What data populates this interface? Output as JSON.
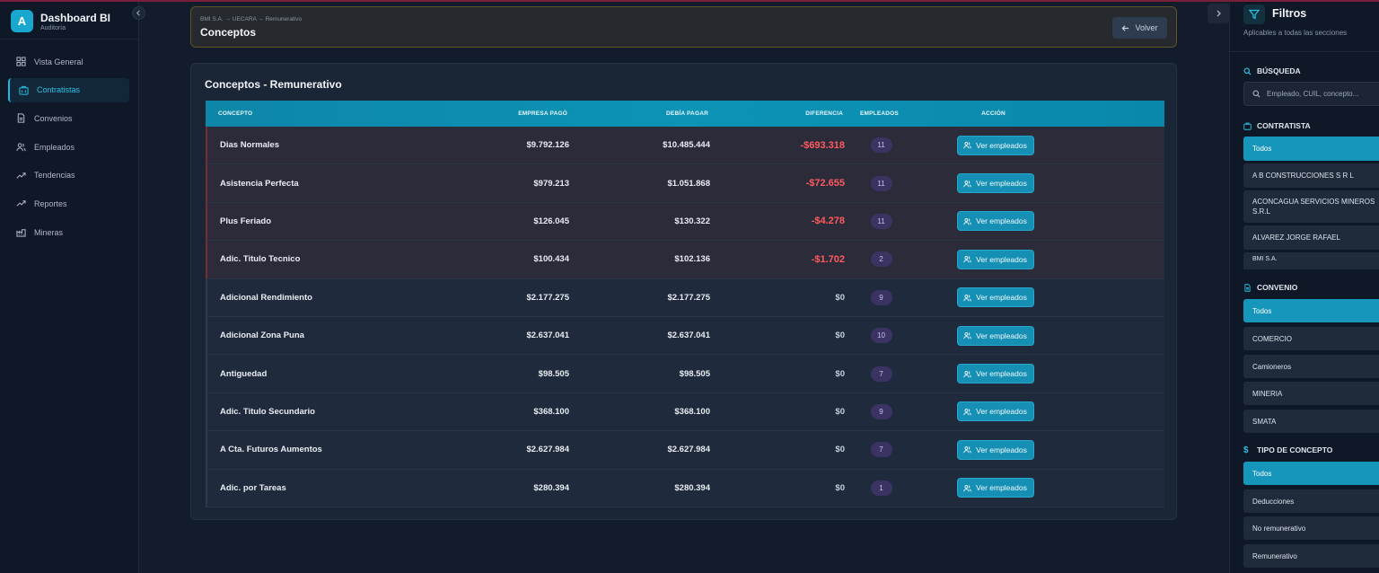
{
  "brand": {
    "badge": "A",
    "title": "Dashboard BI",
    "subtitle": "Auditoría"
  },
  "sidebar": {
    "items": [
      {
        "label": "Vista General",
        "icon": "grid-icon"
      },
      {
        "label": "Contratistas",
        "icon": "building-icon",
        "active": true
      },
      {
        "label": "Convenios",
        "icon": "document-icon"
      },
      {
        "label": "Empleados",
        "icon": "users-icon"
      },
      {
        "label": "Tendencias",
        "icon": "trend-icon"
      },
      {
        "label": "Reportes",
        "icon": "trend-icon"
      },
      {
        "label": "Mineras",
        "icon": "factory-icon"
      }
    ]
  },
  "header": {
    "breadcrumb": "BMI S.A. → UECARA → Remunerativo",
    "title": "Conceptos",
    "back_label": "Volver"
  },
  "table": {
    "title": "Conceptos - Remunerativo",
    "columns": [
      "CONCEPTO",
      "EMPRESA PAGÓ",
      "DEBÍA PAGAR",
      "DIFERENCIA",
      "EMPLEADOS",
      "ACCIÓN"
    ],
    "action_label": "Ver empleados",
    "rows": [
      {
        "concepto": "Dias Normales",
        "pago": "$9.792.126",
        "debia": "$10.485.444",
        "diferencia": "-$693.318",
        "empleados": "11",
        "status": "neg"
      },
      {
        "concepto": "Asistencia Perfecta",
        "pago": "$979.213",
        "debia": "$1.051.868",
        "diferencia": "-$72.655",
        "empleados": "11",
        "status": "neg"
      },
      {
        "concepto": "Plus Feriado",
        "pago": "$126.045",
        "debia": "$130.322",
        "diferencia": "-$4.278",
        "empleados": "11",
        "status": "neg"
      },
      {
        "concepto": "Adic. Titulo Tecnico",
        "pago": "$100.434",
        "debia": "$102.136",
        "diferencia": "-$1.702",
        "empleados": "2",
        "status": "neg"
      },
      {
        "concepto": "Adicional Rendimiento",
        "pago": "$2.177.275",
        "debia": "$2.177.275",
        "diferencia": "$0",
        "empleados": "9",
        "status": "zero"
      },
      {
        "concepto": "Adicional Zona Puna",
        "pago": "$2.637.041",
        "debia": "$2.637.041",
        "diferencia": "$0",
        "empleados": "10",
        "status": "zero"
      },
      {
        "concepto": "Antiguedad",
        "pago": "$98.505",
        "debia": "$98.505",
        "diferencia": "$0",
        "empleados": "7",
        "status": "zero"
      },
      {
        "concepto": "Adic. Titulo Secundario",
        "pago": "$368.100",
        "debia": "$368.100",
        "diferencia": "$0",
        "empleados": "9",
        "status": "zero"
      },
      {
        "concepto": "A Cta. Futuros Aumentos",
        "pago": "$2.627.984",
        "debia": "$2.627.984",
        "diferencia": "$0",
        "empleados": "7",
        "status": "zero"
      },
      {
        "concepto": "Adic. por Tareas",
        "pago": "$280.394",
        "debia": "$280.394",
        "diferencia": "$0",
        "empleados": "1",
        "status": "zero"
      }
    ]
  },
  "filters": {
    "title": "Filtros",
    "subtitle": "Aplicables a todas las secciones",
    "search": {
      "title": "BÚSQUEDA",
      "placeholder": "Empleado, CUIL, concepto..."
    },
    "contratista": {
      "title": "CONTRATISTA",
      "options": [
        "Todos",
        "A B CONSTRUCCIONES S R L",
        "ACONCAGUA SERVICIOS MINEROS S.R.L",
        "ALVAREZ JORGE RAFAEL",
        "BMI S.A."
      ],
      "selected": "Todos"
    },
    "convenio": {
      "title": "CONVENIO",
      "options": [
        "Todos",
        "COMERCIO",
        "Camioneros",
        "MINERIA",
        "SMATA"
      ],
      "selected": "Todos"
    },
    "tipo": {
      "title": "TIPO DE CONCEPTO",
      "options": [
        "Todos",
        "Deducciones",
        "No remunerativo",
        "Remunerativo"
      ],
      "selected": "Todos"
    }
  },
  "colors": {
    "accent": "#19a7cf",
    "negative": "#ff5b5f",
    "pill": "#3b3463"
  }
}
